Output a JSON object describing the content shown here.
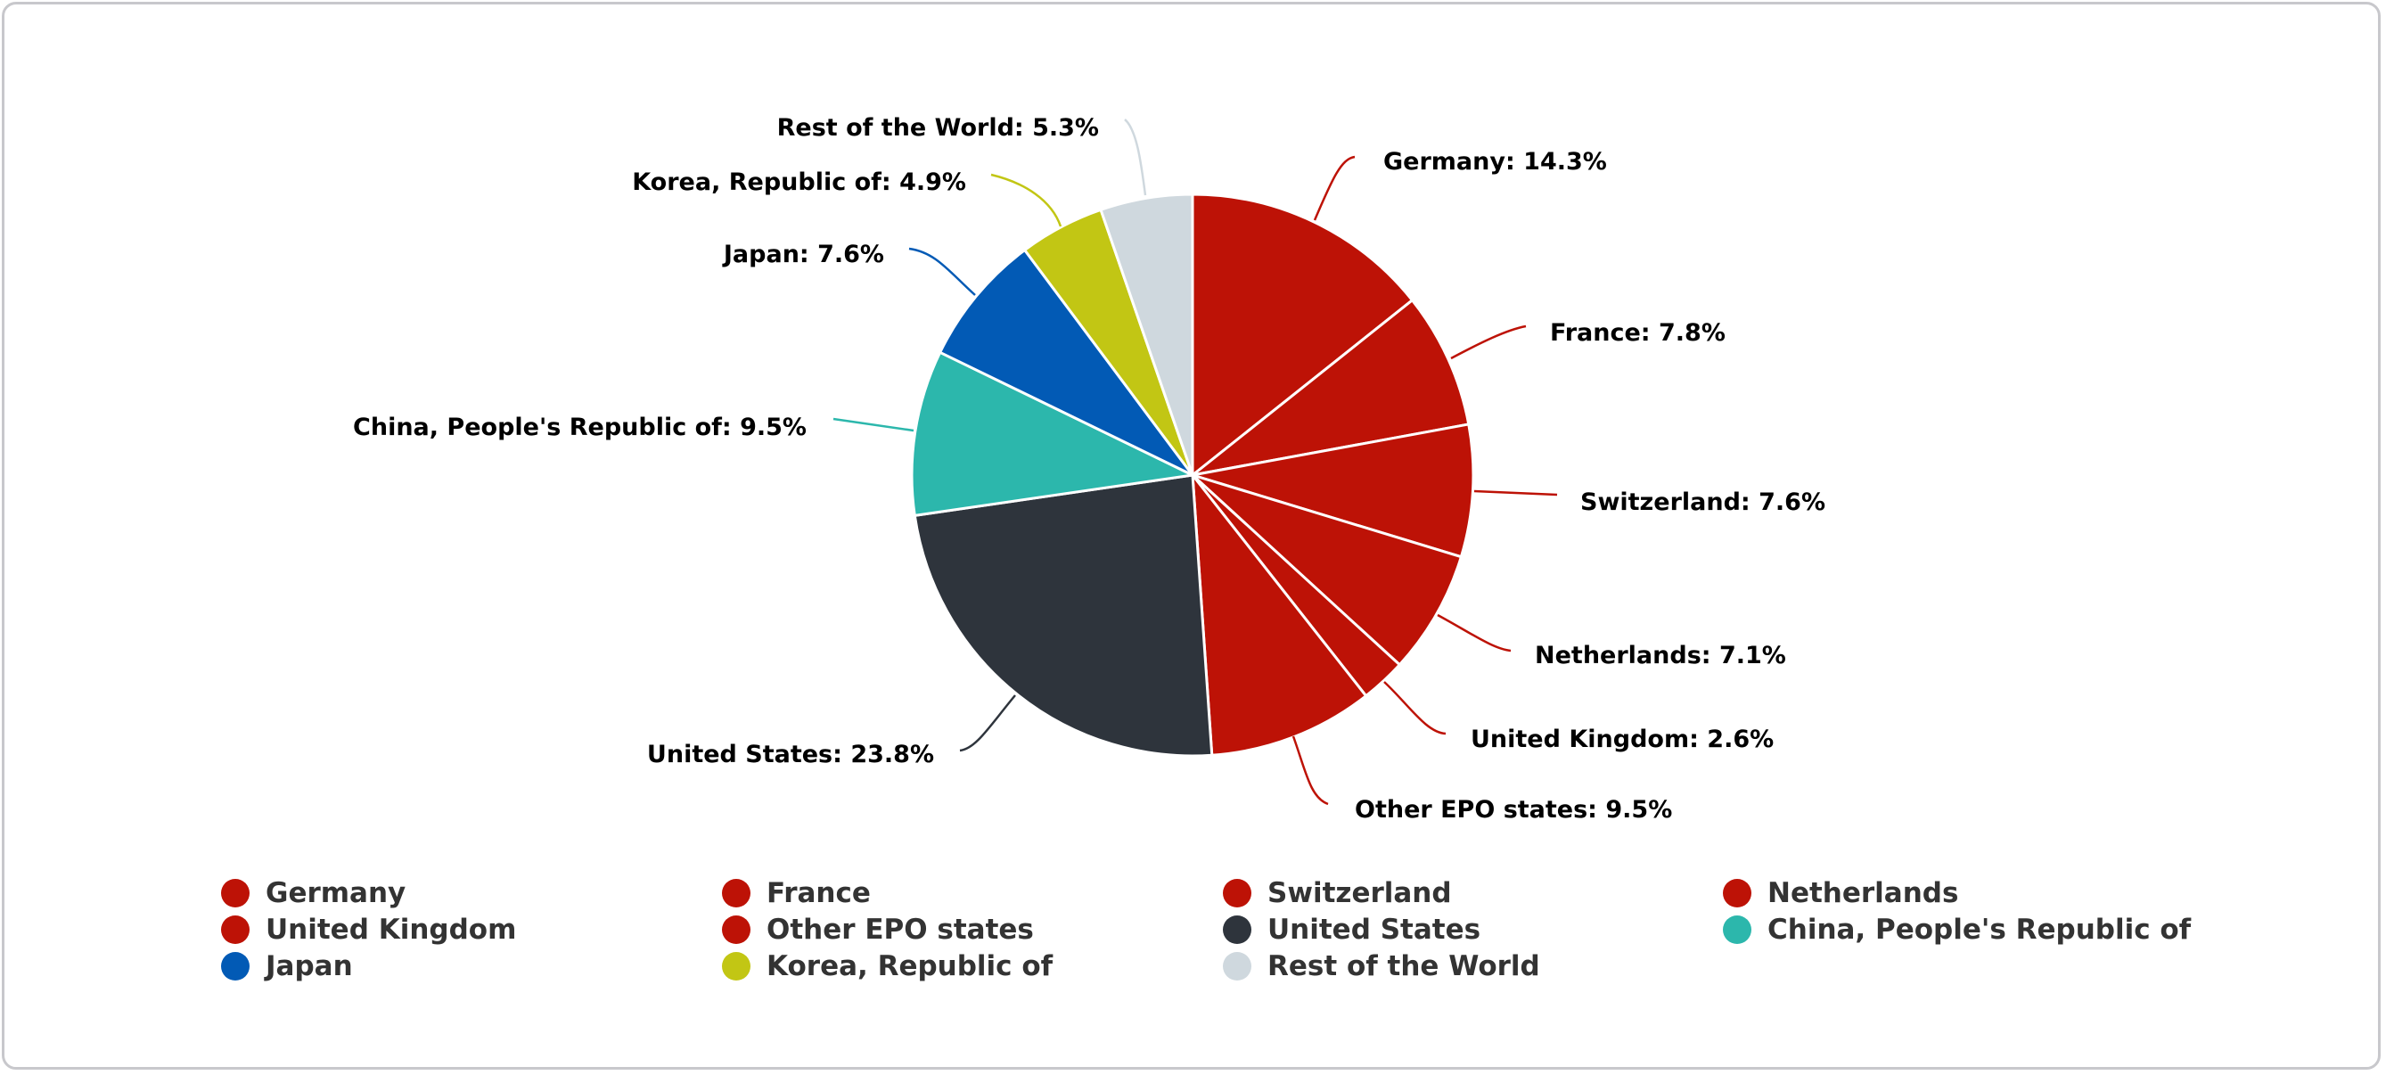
{
  "chart_data": {
    "type": "pie",
    "title": "",
    "start_angle_deg": 0,
    "direction": "clockwise",
    "slices": [
      {
        "name": "Germany",
        "value": 14.3,
        "label": "Germany: 14.3%",
        "color": "#bd1206"
      },
      {
        "name": "France",
        "value": 7.8,
        "label": "France: 7.8%",
        "color": "#bd1206"
      },
      {
        "name": "Switzerland",
        "value": 7.6,
        "label": "Switzerland: 7.6%",
        "color": "#bd1206"
      },
      {
        "name": "Netherlands",
        "value": 7.1,
        "label": "Netherlands: 7.1%",
        "color": "#bd1206"
      },
      {
        "name": "United Kingdom",
        "value": 2.6,
        "label": "United Kingdom: 2.6%",
        "color": "#bd1206"
      },
      {
        "name": "Other EPO states",
        "value": 9.5,
        "label": "Other EPO states: 9.5%",
        "color": "#bd1206"
      },
      {
        "name": "United States",
        "value": 23.8,
        "label": "United States: 23.8%",
        "color": "#2e343c"
      },
      {
        "name": "China, People's Republic of",
        "value": 9.5,
        "label": "China, People's Republic of: 9.5%",
        "color": "#2cb7ac"
      },
      {
        "name": "Japan",
        "value": 7.6,
        "label": "Japan: 7.6%",
        "color": "#025ab5"
      },
      {
        "name": "Korea, Republic of",
        "value": 4.9,
        "label": "Korea, Republic of: 4.9%",
        "color": "#c2c614"
      },
      {
        "name": "Rest of the World",
        "value": 5.3,
        "label": "Rest of the World: 5.3%",
        "color": "#cfd8de"
      }
    ],
    "legend": {
      "position": "bottom",
      "items": [
        "Germany",
        "France",
        "Switzerland",
        "Netherlands",
        "United Kingdom",
        "Other EPO states",
        "United States",
        "China, People's Republic of",
        "Japan",
        "Korea, Republic of",
        "Rest of the World"
      ]
    }
  },
  "labels": {
    "germany": "Germany: 14.3%",
    "france": "France: 7.8%",
    "switzerland": "Switzerland: 7.6%",
    "netherlands": "Netherlands: 7.1%",
    "uk": "United Kingdom: 2.6%",
    "other_epo": "Other EPO states: 9.5%",
    "us": "United States: 23.8%",
    "china": "China, People's Republic of: 9.5%",
    "japan": "Japan: 7.6%",
    "korea": "Korea, Republic of: 4.9%",
    "rest": "Rest of the World: 5.3%"
  },
  "legend": {
    "items": [
      {
        "label": "Germany",
        "color": "#bd1206"
      },
      {
        "label": "France",
        "color": "#bd1206"
      },
      {
        "label": "Switzerland",
        "color": "#bd1206"
      },
      {
        "label": "Netherlands",
        "color": "#bd1206"
      },
      {
        "label": "United Kingdom",
        "color": "#bd1206"
      },
      {
        "label": "Other EPO states",
        "color": "#bd1206"
      },
      {
        "label": "United States",
        "color": "#2e343c"
      },
      {
        "label": "China, People's Republic of",
        "color": "#2cb7ac"
      },
      {
        "label": "Japan",
        "color": "#025ab5"
      },
      {
        "label": "Korea, Republic of",
        "color": "#c2c614"
      },
      {
        "label": "Rest of the World",
        "color": "#cfd8de"
      }
    ]
  }
}
